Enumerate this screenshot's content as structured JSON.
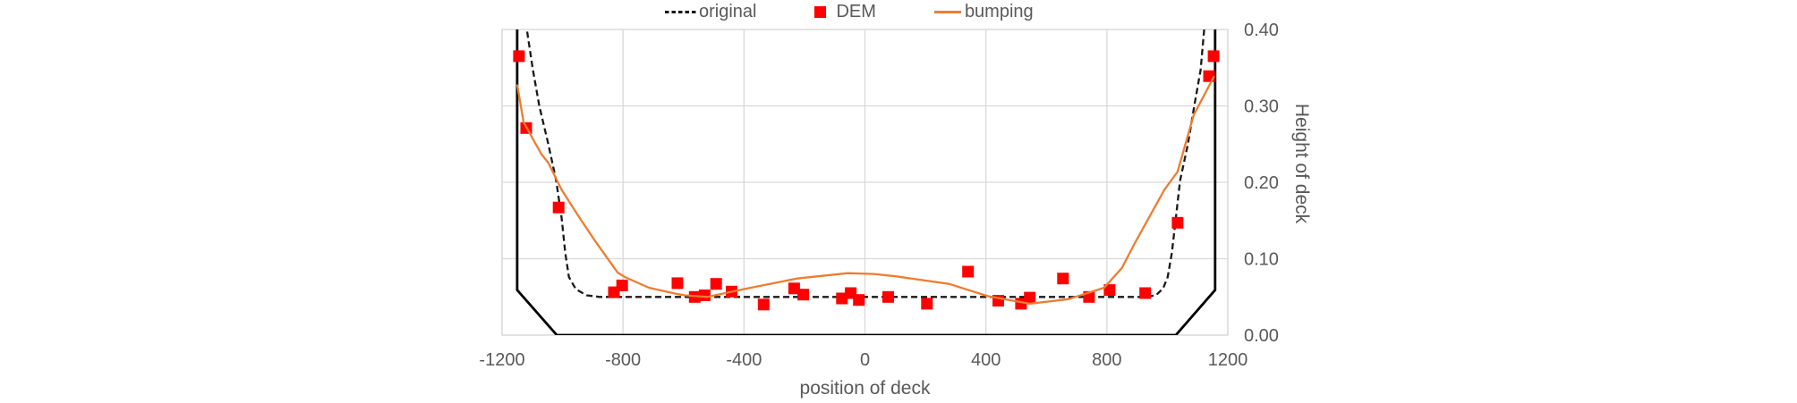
{
  "chart_data": {
    "type": "combo",
    "title": "",
    "legend_position": "top",
    "grid": true,
    "grid_color": "#d9d9d9",
    "text_color": "#595959",
    "x_axis": {
      "label": "position of deck",
      "min": -1200,
      "max": 1200,
      "tick_step": 400,
      "ticks": [
        -1200,
        -800,
        -400,
        0,
        400,
        800,
        1200
      ],
      "tick_labels": [
        "-1200",
        "-800",
        "-400",
        "0",
        "400",
        "800",
        "1200"
      ]
    },
    "y_axis": {
      "label": "Height of deck",
      "side": "right",
      "min": 0,
      "max": 0.4,
      "tick_step": 0.1,
      "ticks": [
        0,
        0.1,
        0.2,
        0.3,
        0.4
      ],
      "tick_labels": [
        "0.00",
        "0.10",
        "0.20",
        "0.30",
        "0.40"
      ]
    },
    "series": [
      {
        "name": "boundary",
        "type": "line",
        "style": "solid",
        "color": "#000000",
        "in_legend": false,
        "points": [
          [
            -1150,
            0.41
          ],
          [
            -1150,
            0.059
          ],
          [
            -1019,
            0.0
          ],
          [
            1028,
            0.0
          ],
          [
            1158,
            0.059
          ],
          [
            1158,
            0.41
          ]
        ]
      },
      {
        "name": "original",
        "type": "line",
        "style": "dashed",
        "color": "#1a1a1a",
        "in_legend": true,
        "points": [
          [
            -1122,
            0.41
          ],
          [
            -1098,
            0.347
          ],
          [
            -1077,
            0.3
          ],
          [
            -1047,
            0.25
          ],
          [
            -1021,
            0.202
          ],
          [
            -1003,
            0.153
          ],
          [
            -991,
            0.108
          ],
          [
            -979,
            0.076
          ],
          [
            -956,
            0.06
          ],
          [
            -920,
            0.052
          ],
          [
            -878,
            0.05
          ],
          [
            925,
            0.05
          ],
          [
            962,
            0.052
          ],
          [
            986,
            0.061
          ],
          [
            1001,
            0.076
          ],
          [
            1015,
            0.108
          ],
          [
            1028,
            0.153
          ],
          [
            1042,
            0.202
          ],
          [
            1068,
            0.25
          ],
          [
            1089,
            0.3
          ],
          [
            1110,
            0.347
          ],
          [
            1124,
            0.41
          ]
        ]
      },
      {
        "name": "DEM",
        "type": "scatter",
        "marker": "square",
        "marker_size": 13,
        "color": "#ff0000",
        "in_legend": true,
        "points": [
          [
            -1144,
            0.365
          ],
          [
            -1120,
            0.271
          ],
          [
            -1013,
            0.167
          ],
          [
            -830,
            0.056
          ],
          [
            -803,
            0.065
          ],
          [
            -620,
            0.068
          ],
          [
            -563,
            0.05
          ],
          [
            -530,
            0.052
          ],
          [
            -492,
            0.067
          ],
          [
            -441,
            0.057
          ],
          [
            -335,
            0.04
          ],
          [
            -234,
            0.061
          ],
          [
            -204,
            0.053
          ],
          [
            -76,
            0.048
          ],
          [
            -47,
            0.055
          ],
          [
            -20,
            0.046
          ],
          [
            77,
            0.05
          ],
          [
            205,
            0.041
          ],
          [
            341,
            0.083
          ],
          [
            441,
            0.045
          ],
          [
            516,
            0.041
          ],
          [
            545,
            0.049
          ],
          [
            655,
            0.074
          ],
          [
            741,
            0.05
          ],
          [
            809,
            0.059
          ],
          [
            927,
            0.055
          ],
          [
            1034,
            0.147
          ],
          [
            1138,
            0.339
          ],
          [
            1153,
            0.365
          ]
        ]
      },
      {
        "name": "bumping",
        "type": "line",
        "style": "solid",
        "color": "#ed7d31",
        "in_legend": true,
        "points": [
          [
            -1150,
            0.328
          ],
          [
            -1129,
            0.279
          ],
          [
            -1070,
            0.237
          ],
          [
            -1046,
            0.225
          ],
          [
            -1004,
            0.191
          ],
          [
            -951,
            0.158
          ],
          [
            -892,
            0.123
          ],
          [
            -818,
            0.082
          ],
          [
            -794,
            0.076
          ],
          [
            -714,
            0.062
          ],
          [
            -625,
            0.054
          ],
          [
            -595,
            0.052
          ],
          [
            -520,
            0.05
          ],
          [
            -403,
            0.06
          ],
          [
            -225,
            0.074
          ],
          [
            -56,
            0.081
          ],
          [
            30,
            0.08
          ],
          [
            101,
            0.077
          ],
          [
            278,
            0.067
          ],
          [
            406,
            0.051
          ],
          [
            545,
            0.041
          ],
          [
            673,
            0.047
          ],
          [
            791,
            0.062
          ],
          [
            850,
            0.088
          ],
          [
            892,
            0.12
          ],
          [
            990,
            0.19
          ],
          [
            1034,
            0.214
          ],
          [
            1087,
            0.288
          ],
          [
            1155,
            0.339
          ]
        ]
      }
    ]
  }
}
